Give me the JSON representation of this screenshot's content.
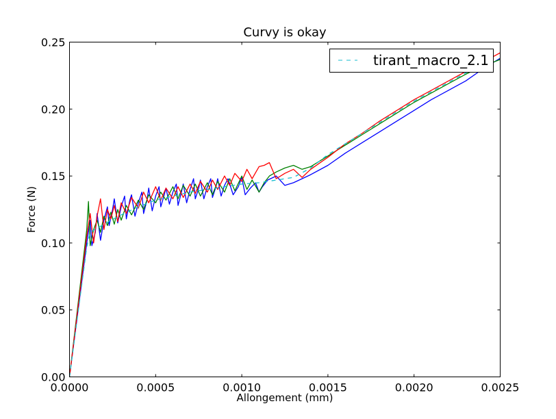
{
  "chart_data": {
    "type": "line",
    "title": "Curvy is okay",
    "xlabel": "Allongement (mm)",
    "ylabel": "Force (N)",
    "xlim": [
      0,
      0.0025
    ],
    "ylim": [
      0,
      0.25
    ],
    "x_ticks": [
      "0.0000",
      "0.0005",
      "0.0010",
      "0.0015",
      "0.0020",
      "0.0025"
    ],
    "y_ticks": [
      "0.00",
      "0.05",
      "0.10",
      "0.15",
      "0.20",
      "0.25"
    ],
    "grid": false,
    "legend_position": "top-right",
    "series": [
      {
        "name": "tirant_macro_2.1",
        "style": "dashed",
        "color": "#17becf",
        "x": [
          0,
          0.0001,
          0.00012,
          0.0002,
          0.0003,
          0.0004,
          0.0005,
          0.0006,
          0.0007,
          0.0008,
          0.0009,
          0.001,
          0.0011,
          0.0012,
          0.0013,
          0.0014,
          0.0015,
          0.0016,
          0.0017,
          0.0018,
          0.0019,
          0.002,
          0.0021,
          0.0022,
          0.0023,
          0.00245
        ],
        "y": [
          0,
          0.097,
          0.108,
          0.114,
          0.121,
          0.127,
          0.132,
          0.135,
          0.138,
          0.14,
          0.142,
          0.144,
          0.145,
          0.147,
          0.149,
          0.156,
          0.166,
          0.174,
          0.182,
          0.19,
          0.198,
          0.206,
          0.213,
          0.22,
          0.227,
          0.236
        ]
      },
      {
        "style": "solid",
        "color": "#0000ff",
        "x": [
          0,
          0.0001,
          0.00012,
          0.00013,
          0.00015,
          0.00016,
          0.00018,
          0.0002,
          0.00022,
          0.00023,
          0.00025,
          0.00026,
          0.00028,
          0.0003,
          0.00032,
          0.00033,
          0.00035,
          0.00036,
          0.00038,
          0.0004,
          0.00042,
          0.00043,
          0.00045,
          0.00046,
          0.00048,
          0.0005,
          0.00052,
          0.00053,
          0.00055,
          0.00056,
          0.00058,
          0.0006,
          0.00062,
          0.00063,
          0.00065,
          0.00066,
          0.00068,
          0.0007,
          0.00072,
          0.00073,
          0.00075,
          0.00076,
          0.00078,
          0.0008,
          0.00082,
          0.00083,
          0.00085,
          0.00086,
          0.00088,
          0.0009,
          0.00092,
          0.00095,
          0.00098,
          0.001,
          0.00102,
          0.00105,
          0.00108,
          0.0011,
          0.00112,
          0.00115,
          0.0012,
          0.00125,
          0.0013,
          0.00135,
          0.0014,
          0.0015,
          0.0016,
          0.0017,
          0.0018,
          0.0019,
          0.002,
          0.0021,
          0.0022,
          0.0023,
          0.0024,
          0.0025
        ],
        "y": [
          0,
          0.1,
          0.117,
          0.098,
          0.108,
          0.122,
          0.102,
          0.117,
          0.127,
          0.113,
          0.125,
          0.133,
          0.115,
          0.127,
          0.135,
          0.118,
          0.132,
          0.136,
          0.12,
          0.13,
          0.138,
          0.122,
          0.132,
          0.141,
          0.124,
          0.135,
          0.142,
          0.127,
          0.136,
          0.141,
          0.129,
          0.138,
          0.144,
          0.128,
          0.138,
          0.144,
          0.13,
          0.14,
          0.148,
          0.133,
          0.141,
          0.147,
          0.133,
          0.142,
          0.148,
          0.134,
          0.142,
          0.148,
          0.135,
          0.143,
          0.148,
          0.136,
          0.142,
          0.149,
          0.136,
          0.141,
          0.145,
          0.138,
          0.142,
          0.147,
          0.15,
          0.143,
          0.145,
          0.148,
          0.151,
          0.158,
          0.167,
          0.175,
          0.183,
          0.191,
          0.199,
          0.207,
          0.214,
          0.221,
          0.23,
          0.238
        ]
      },
      {
        "style": "solid",
        "color": "#008000",
        "x": [
          0,
          0.0001,
          0.00011,
          0.00012,
          0.00014,
          0.00016,
          0.00018,
          0.0002,
          0.00022,
          0.00024,
          0.00026,
          0.00028,
          0.0003,
          0.00033,
          0.00036,
          0.0004,
          0.00043,
          0.00046,
          0.0005,
          0.00053,
          0.00056,
          0.0006,
          0.00063,
          0.00066,
          0.0007,
          0.00073,
          0.00076,
          0.0008,
          0.00083,
          0.00086,
          0.0009,
          0.00093,
          0.00096,
          0.001,
          0.00103,
          0.00106,
          0.0011,
          0.00113,
          0.00116,
          0.0012,
          0.00125,
          0.0013,
          0.00135,
          0.0014,
          0.0015,
          0.0016,
          0.0017,
          0.0018,
          0.0019,
          0.002,
          0.0021,
          0.0022,
          0.0023,
          0.0024,
          0.0025
        ],
        "y": [
          0,
          0.11,
          0.131,
          0.098,
          0.11,
          0.117,
          0.108,
          0.12,
          0.113,
          0.123,
          0.114,
          0.125,
          0.117,
          0.128,
          0.121,
          0.132,
          0.125,
          0.136,
          0.13,
          0.138,
          0.132,
          0.142,
          0.133,
          0.143,
          0.135,
          0.144,
          0.135,
          0.145,
          0.136,
          0.146,
          0.138,
          0.148,
          0.139,
          0.15,
          0.14,
          0.147,
          0.138,
          0.145,
          0.15,
          0.153,
          0.156,
          0.158,
          0.155,
          0.157,
          0.165,
          0.173,
          0.181,
          0.189,
          0.197,
          0.205,
          0.212,
          0.219,
          0.226,
          0.232,
          0.237
        ]
      },
      {
        "style": "solid",
        "color": "#ff0000",
        "x": [
          0,
          0.0001,
          0.00012,
          0.00014,
          0.00016,
          0.00018,
          0.0002,
          0.00022,
          0.00024,
          0.00026,
          0.00028,
          0.0003,
          0.00033,
          0.00036,
          0.0004,
          0.00043,
          0.00046,
          0.0005,
          0.00053,
          0.00056,
          0.0006,
          0.00063,
          0.00066,
          0.0007,
          0.00073,
          0.00076,
          0.0008,
          0.00083,
          0.00086,
          0.0009,
          0.00093,
          0.00096,
          0.001,
          0.00103,
          0.00106,
          0.0011,
          0.00113,
          0.00116,
          0.0012,
          0.00125,
          0.0013,
          0.00135,
          0.0014,
          0.0015,
          0.0016,
          0.0017,
          0.0018,
          0.0019,
          0.002,
          0.0021,
          0.0022,
          0.0023,
          0.0024,
          0.0025
        ],
        "y": [
          0,
          0.105,
          0.122,
          0.1,
          0.12,
          0.133,
          0.11,
          0.125,
          0.118,
          0.128,
          0.116,
          0.13,
          0.122,
          0.134,
          0.126,
          0.138,
          0.13,
          0.142,
          0.132,
          0.141,
          0.133,
          0.142,
          0.134,
          0.144,
          0.137,
          0.146,
          0.138,
          0.147,
          0.14,
          0.15,
          0.143,
          0.152,
          0.146,
          0.155,
          0.148,
          0.157,
          0.158,
          0.16,
          0.148,
          0.152,
          0.155,
          0.149,
          0.155,
          0.164,
          0.174,
          0.182,
          0.191,
          0.199,
          0.207,
          0.214,
          0.221,
          0.228,
          0.235,
          0.242
        ]
      }
    ]
  }
}
